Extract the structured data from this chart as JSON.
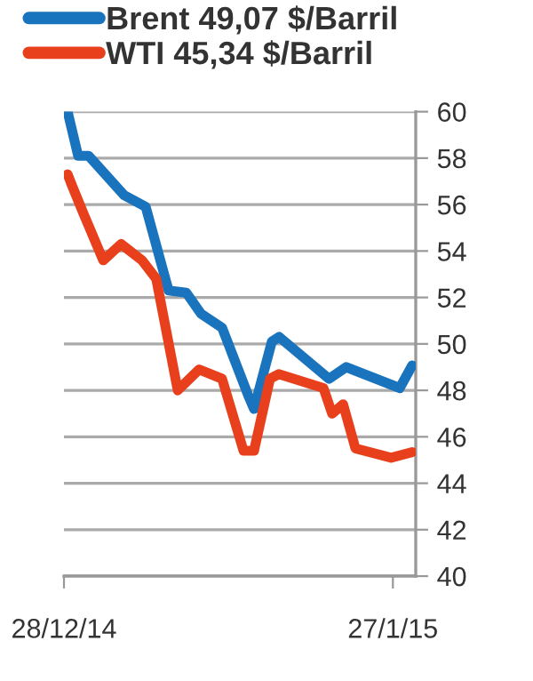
{
  "chart_data": {
    "type": "line",
    "series": [
      {
        "name": "Brent 49,07 $/Barril",
        "color": "#1a73bd",
        "x": [
          "2014-12-28T08:00",
          "2014-12-29T07:00",
          "2014-12-30T06:00",
          "2015-01-02T12:00",
          "2015-01-04T11:00",
          "2015-01-06T13:00",
          "2015-01-08T04:00",
          "2015-01-09T12:00",
          "2015-01-11T10:00",
          "2015-01-13T21:00",
          "2015-01-14T08:00",
          "2015-01-15T23:00",
          "2015-01-16T15:00",
          "2015-01-21T04:00",
          "2015-01-22T18:00",
          "2015-01-27T15:00",
          "2015-01-28T18:00"
        ],
        "values": [
          60.0,
          58.1,
          58.1,
          56.4,
          55.9,
          52.3,
          52.2,
          51.3,
          50.7,
          47.7,
          47.2,
          50.1,
          50.3,
          48.5,
          49.0,
          48.1,
          49.07
        ]
      },
      {
        "name": "WTI 45,34 $/Barril",
        "color": "#e8401c",
        "x": [
          "2014-12-28T08:00",
          "2014-12-28T16:00",
          "2014-12-29T19:00",
          "2014-12-31T14:00",
          "2015-01-02T05:00",
          "2015-01-04T03:00",
          "2015-01-05T10:00",
          "2015-01-07T09:00",
          "2015-01-09T08:00",
          "2015-01-11T10:00",
          "2015-01-13T09:00",
          "2015-01-14T08:00",
          "2015-01-15T19:00",
          "2015-01-16T14:00",
          "2015-01-20T16:00",
          "2015-01-21T11:00",
          "2015-01-22T11:00",
          "2015-01-23T14:00",
          "2015-01-26T20:00",
          "2015-01-28T18:00"
        ],
        "values": [
          57.3,
          56.9,
          55.6,
          53.6,
          54.3,
          53.6,
          52.8,
          48.0,
          48.9,
          48.5,
          45.4,
          45.4,
          48.5,
          48.7,
          48.1,
          47.0,
          47.4,
          45.5,
          45.1,
          45.34
        ]
      }
    ],
    "xlim": [
      "2014-12-28",
      "2015-01-29T02:00"
    ],
    "xticks": [
      {
        "value": "2014-12-28",
        "label": "28/12/14"
      },
      {
        "value": "2015-01-27",
        "label": "27/1/15"
      }
    ],
    "ylim": [
      40,
      60
    ],
    "yticks": [
      40,
      42,
      44,
      46,
      48,
      50,
      52,
      54,
      56,
      58,
      60
    ],
    "grid": "y",
    "legend": "top left",
    "marker": "none",
    "line_style": "solid"
  }
}
